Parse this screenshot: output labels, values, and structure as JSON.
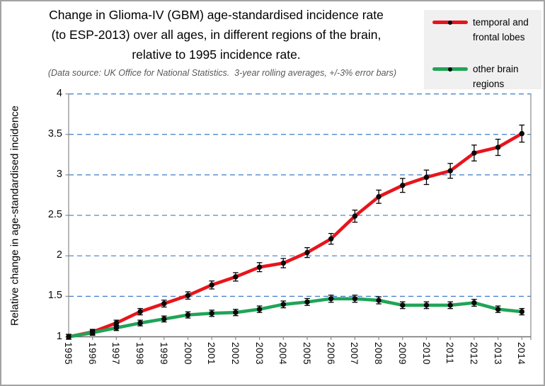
{
  "frame": {
    "border_color": "#a3a3a3",
    "background": "#ffffff"
  },
  "title": "Change in Glioma-IV (GBM) age-standardised incidence rate\n(to ESP-2013) over all ages, in different regions of the brain,\nrelative to 1995 incidence rate.",
  "subtitle": "(Data source: UK Office for National Statistics.  3-year rolling averages, +/-3% error bars)",
  "legend": {
    "background": "#f0f0f0",
    "items": [
      {
        "label": "temporal and\nfrontal lobes",
        "color": "#e8141c",
        "marker": "black-dot"
      },
      {
        "label": "other brain\nregions",
        "color": "#20a457",
        "marker": "black-dot"
      }
    ]
  },
  "chart_data": {
    "type": "line",
    "x": [
      1995,
      1996,
      1997,
      1998,
      1999,
      2000,
      2001,
      2002,
      2003,
      2004,
      2005,
      2006,
      2007,
      2008,
      2009,
      2010,
      2011,
      2012,
      2013,
      2014
    ],
    "series": [
      {
        "name": "temporal and frontal lobes",
        "color": "#e8141c",
        "values": [
          1.0,
          1.06,
          1.17,
          1.31,
          1.41,
          1.51,
          1.64,
          1.74,
          1.86,
          1.91,
          2.04,
          2.21,
          2.49,
          2.73,
          2.87,
          2.97,
          3.05,
          3.27,
          3.34,
          3.51
        ]
      },
      {
        "name": "other brain regions",
        "color": "#20a457",
        "values": [
          1.0,
          1.05,
          1.11,
          1.17,
          1.22,
          1.27,
          1.29,
          1.3,
          1.34,
          1.4,
          1.43,
          1.47,
          1.47,
          1.45,
          1.39,
          1.39,
          1.39,
          1.42,
          1.34,
          1.31
        ]
      }
    ],
    "error_pct": 3,
    "ylabel": "Relative change in age-standardised incidence",
    "xlabel": "",
    "ylim": [
      1,
      4
    ],
    "yticks": [
      1,
      1.5,
      2,
      2.5,
      3,
      3.5,
      4
    ],
    "gridlines": {
      "style": "dashed",
      "color": "#3e7cc7",
      "at": [
        1.5,
        2,
        2.5,
        3,
        3.5,
        4
      ]
    },
    "axis_color": "#8a8a8a",
    "marker_color": "#0a0a0a",
    "legend_position": "top-right",
    "grid": "horizontal-only"
  }
}
